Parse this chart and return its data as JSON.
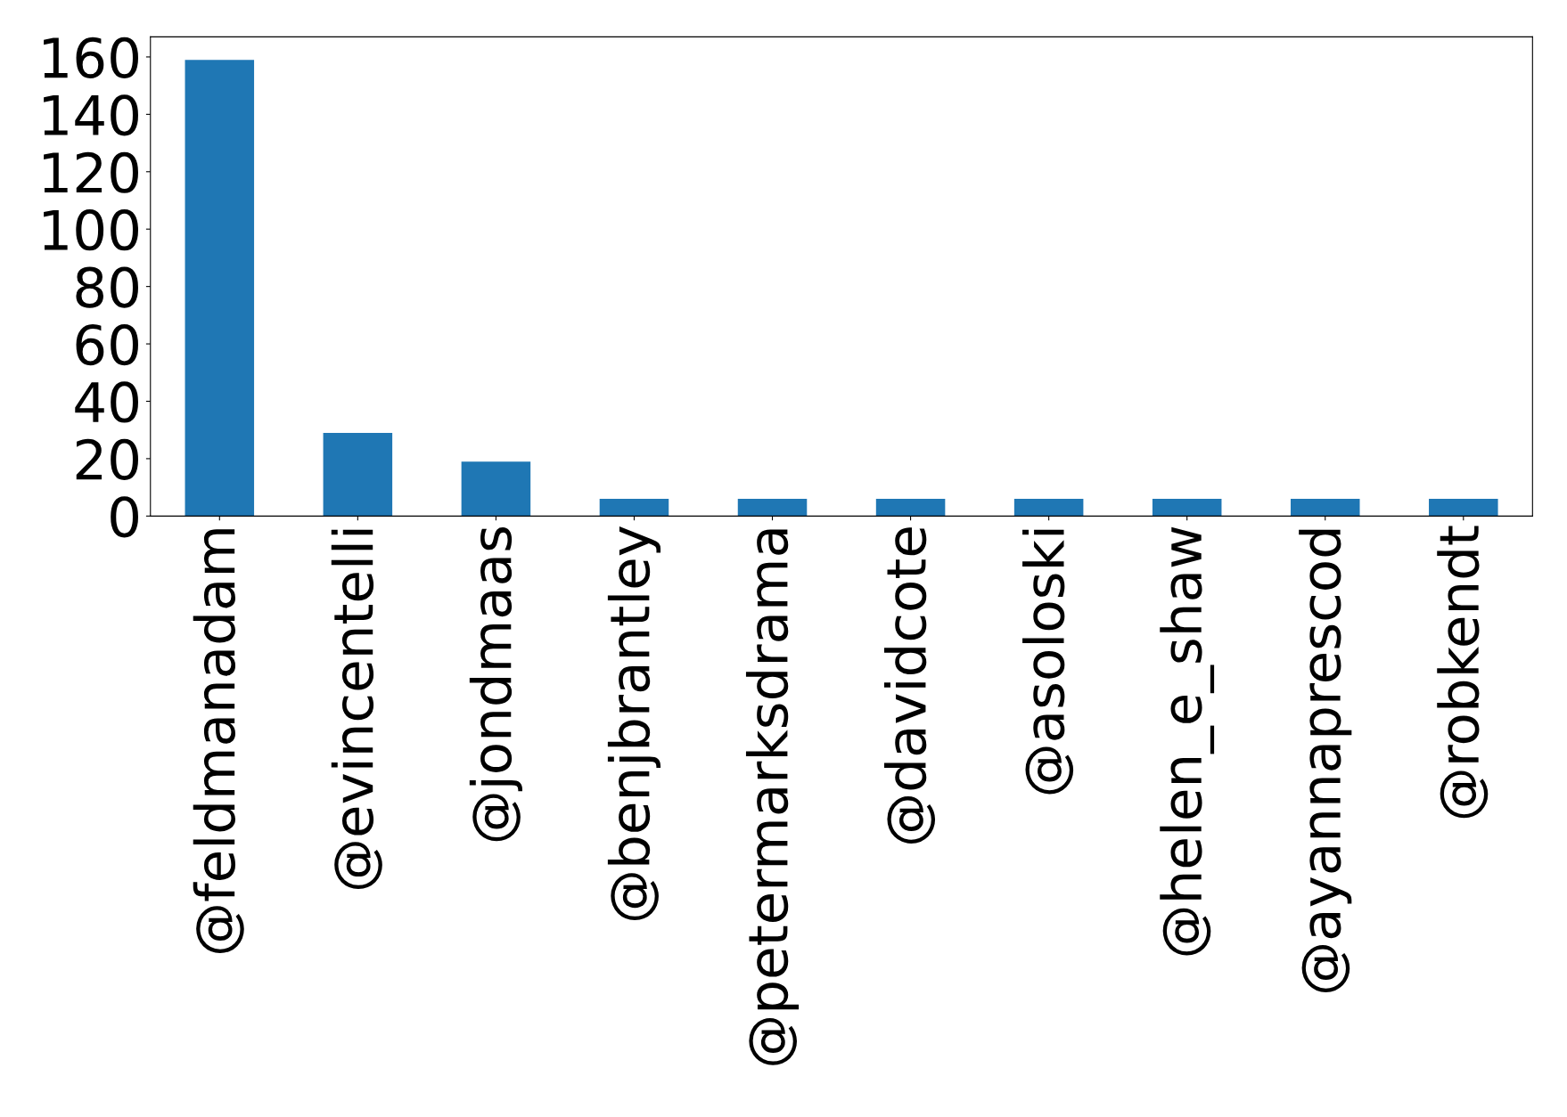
{
  "chart_data": {
    "type": "bar",
    "categories": [
      "@feldmanadam",
      "@evincentelli",
      "@jondmaas",
      "@benjbrantley",
      "@petermarksdrama",
      "@davidcote",
      "@asoloski",
      "@helen_e_shaw",
      "@ayannaprescod",
      "@robkendt"
    ],
    "values": [
      159,
      29,
      19,
      6,
      6,
      6,
      6,
      6,
      6,
      6
    ],
    "color": "#1f77b4",
    "ylim": [
      0,
      167
    ],
    "yticks": [
      0,
      20,
      40,
      60,
      80,
      100,
      120,
      140,
      160
    ],
    "grid": false,
    "legend": false
  }
}
